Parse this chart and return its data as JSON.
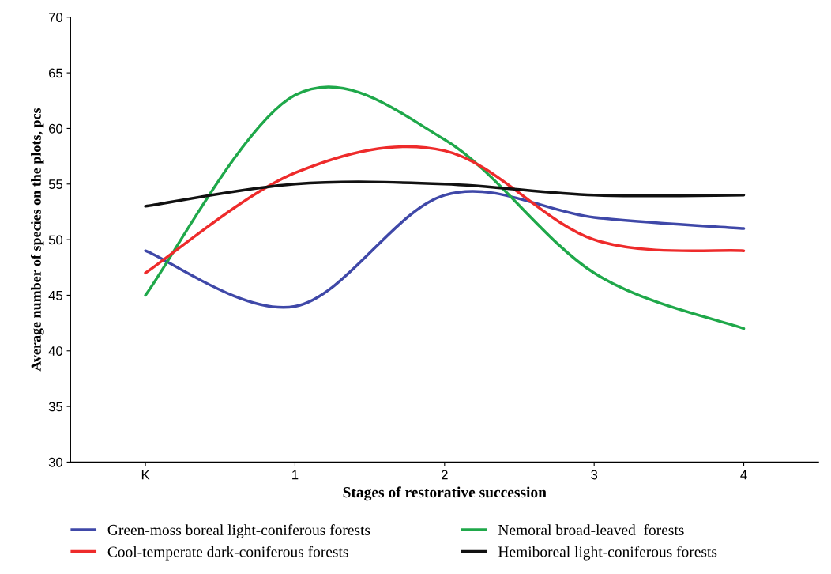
{
  "chart_data": {
    "type": "line",
    "xlabel": "Stages of restorative succession",
    "ylabel": "Average number of species on the plots, pcs",
    "categories": [
      "K",
      "1",
      "2",
      "3",
      "4"
    ],
    "series": [
      {
        "name": "Green-moss boreal light-coniferous forests",
        "color": "#3f48a8",
        "values": [
          49,
          44,
          54,
          52,
          51
        ]
      },
      {
        "name": "Nemoral broad-leaved  forests",
        "color": "#1fa84a",
        "values": [
          45,
          63,
          59,
          47,
          42
        ]
      },
      {
        "name": "Cool-temperate dark-coniferous forests",
        "color": "#ee2b2b",
        "values": [
          47,
          56,
          58,
          50,
          49
        ]
      },
      {
        "name": "Hemiboreal light-coniferous forests",
        "color": "#111111",
        "values": [
          53,
          55,
          55,
          54,
          54
        ]
      }
    ],
    "ylim": [
      30,
      70
    ],
    "yticks": [
      30,
      35,
      40,
      45,
      50,
      55,
      60,
      65,
      70
    ],
    "grid": false,
    "legend": "bottom",
    "marker": "none",
    "line_style": "solid"
  }
}
